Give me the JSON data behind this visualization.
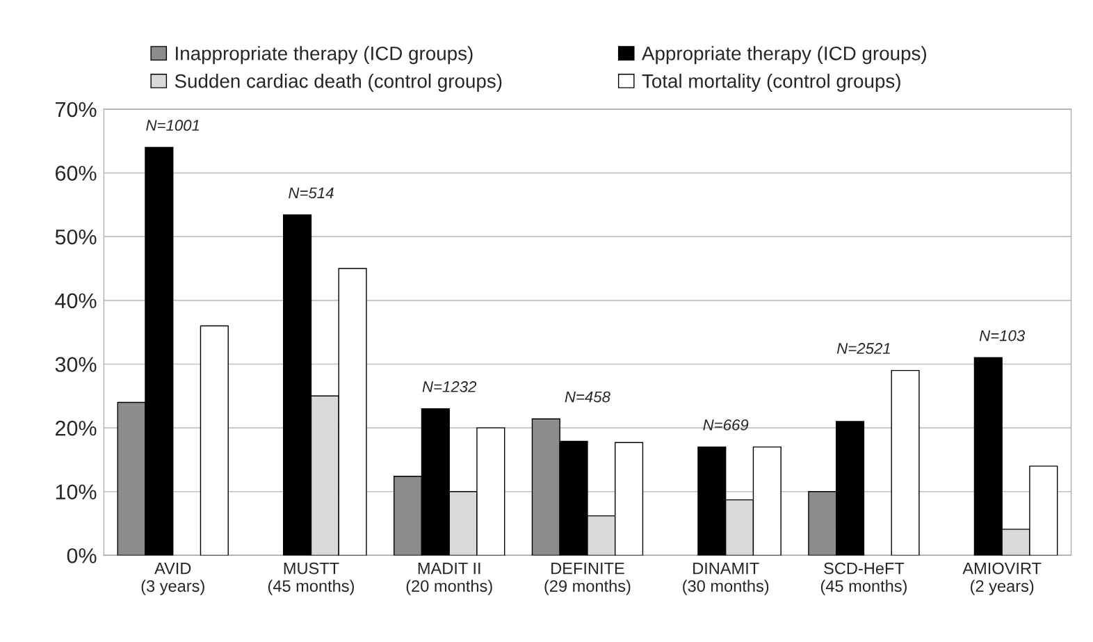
{
  "chart_data": {
    "type": "bar",
    "categories": [
      "AVID\n(3 years)",
      "MUSTT\n(45 months)",
      "MADIT II\n(20 months)",
      "DEFINITE\n(29 months)",
      "DINAMIT\n(30 months)",
      "SCD-HeFT\n(45 months)",
      "AMIOVIRT\n(2 years)"
    ],
    "series": [
      {
        "name": "Inappropriate therapy (ICD groups)",
        "color": "#8c8c8c",
        "values": [
          24,
          null,
          12.4,
          21.4,
          null,
          10,
          null
        ]
      },
      {
        "name": "Appropriate therapy (ICD groups)",
        "color": "#000000",
        "values": [
          64,
          53.4,
          23,
          17.9,
          17,
          21,
          31
        ]
      },
      {
        "name": "Sudden cardiac death (control groups)",
        "color": "#d9d9d9",
        "values": [
          null,
          25,
          10,
          6.2,
          8.7,
          null,
          4.1
        ]
      },
      {
        "name": "Total mortality (control groups)",
        "color": "#ffffff",
        "values": [
          36,
          45,
          20,
          17.7,
          17,
          29,
          14
        ]
      }
    ],
    "ylim": [
      0,
      70
    ],
    "yticks": [
      {
        "value": 0,
        "label": "0%"
      },
      {
        "value": 10,
        "label": "10%"
      },
      {
        "value": 20,
        "label": "20%"
      },
      {
        "value": 30,
        "label": "30%"
      },
      {
        "value": 40,
        "label": "40%"
      },
      {
        "value": 50,
        "label": "50%"
      },
      {
        "value": 60,
        "label": "60%"
      },
      {
        "value": 70,
        "label": "70%"
      }
    ],
    "grid": "y",
    "legend": "top",
    "annotations": [
      "N=1001",
      "N=514",
      "N=1232",
      "N=458",
      "N=669",
      "N=2521",
      "N=103"
    ]
  }
}
